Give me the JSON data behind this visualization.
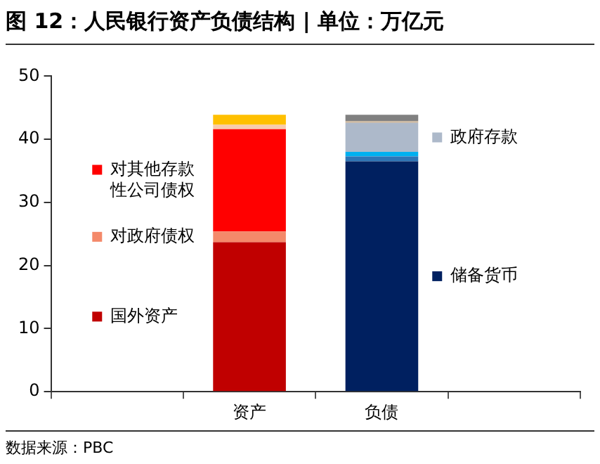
{
  "chart_data": {
    "type": "bar",
    "title": "图 12：人民银行资产负债结构 | 单位：万亿元",
    "stacked": true,
    "legend": "left",
    "grid": false,
    "categories": [
      null,
      "资产",
      "负债",
      null
    ],
    "ylim": [
      0,
      50
    ],
    "yticks": [
      0,
      10,
      20,
      30,
      40,
      50
    ],
    "series": [
      {
        "name": "国外资产",
        "color": "#c00000",
        "values": [
          null,
          23.7,
          null,
          null
        ]
      },
      {
        "name": "对政府债权",
        "color": "#f4896a",
        "values": [
          null,
          1.7,
          null,
          null
        ]
      },
      {
        "name": "对其他存款性公司债权",
        "color": "#ff0000",
        "values": [
          null,
          16.2,
          null,
          null
        ]
      },
      {
        "color": "#f8cbad",
        "values": [
          null,
          0.7,
          null,
          null
        ]
      },
      {
        "color": "#ffc000",
        "values": [
          null,
          1.6,
          null,
          null
        ]
      },
      {
        "name": "储备货币",
        "color": "#002060",
        "values": [
          null,
          null,
          36.5,
          null
        ]
      },
      {
        "color": "#2e75b6",
        "values": [
          null,
          null,
          0.8,
          null
        ]
      },
      {
        "color": "#00b0f0",
        "values": [
          null,
          null,
          0.7,
          null
        ]
      },
      {
        "name": "政府存款",
        "color": "#adb9ca",
        "values": [
          null,
          null,
          4.6,
          null
        ]
      },
      {
        "color": "#c9b49a",
        "values": [
          null,
          null,
          0.3,
          null
        ]
      },
      {
        "color": "#808080",
        "values": [
          null,
          null,
          1.0,
          null
        ]
      }
    ],
    "annotations": [
      "数据来源：PBC"
    ]
  }
}
